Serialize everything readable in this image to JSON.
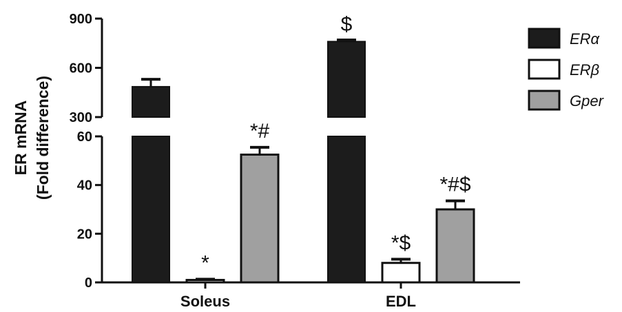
{
  "chart_data": {
    "type": "bar",
    "ylabel_line1": "ER mRNA",
    "ylabel_line2": "(Fold difference)",
    "categories": [
      "Soleus",
      "EDL"
    ],
    "series": [
      {
        "name": "ERα",
        "color": "#1c1c1c",
        "values": [
          485,
          760
        ],
        "errors": [
          45,
          10
        ]
      },
      {
        "name": "ERβ",
        "color": "#ffffff",
        "values": [
          1,
          8
        ],
        "errors": [
          0.3,
          1.5
        ]
      },
      {
        "name": "Gper",
        "color": "#a0a0a0",
        "values": [
          52.5,
          30
        ],
        "errors": [
          3,
          3.5
        ]
      }
    ],
    "annotations": [
      {
        "category": 0,
        "series": 1,
        "text": "*"
      },
      {
        "category": 0,
        "series": 2,
        "text": "*#"
      },
      {
        "category": 1,
        "series": 0,
        "text": "$"
      },
      {
        "category": 1,
        "series": 1,
        "text": "*$"
      },
      {
        "category": 1,
        "series": 2,
        "text": "*#$"
      }
    ],
    "y_segments": [
      {
        "range": [
          0,
          60
        ],
        "ticks": [
          "0",
          "20",
          "40",
          "60"
        ]
      },
      {
        "range": [
          300,
          900
        ],
        "ticks": [
          "300",
          "600",
          "900"
        ]
      }
    ],
    "y_break": true,
    "legend_position": "right"
  }
}
